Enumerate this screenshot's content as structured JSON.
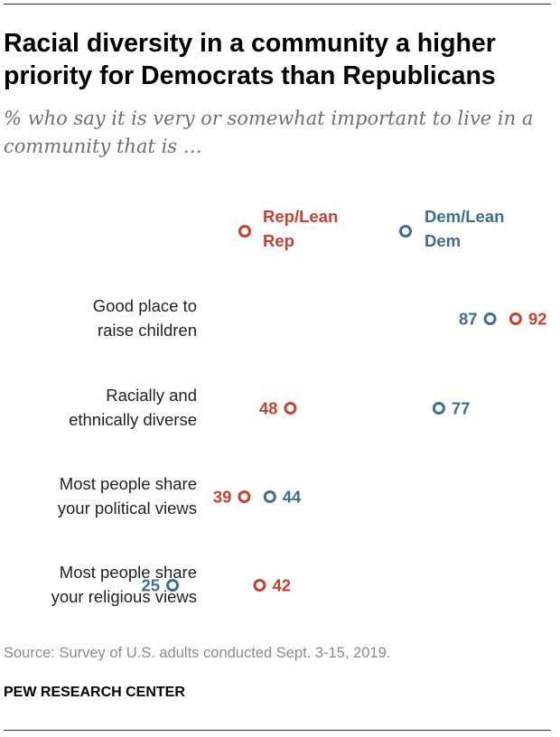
{
  "title": "Racial diversity in a community a higher priority for Democrats than Republicans",
  "subtitle": "% who say it is very or somewhat important to live in a community that is …",
  "source": "Source: Survey of U.S. adults conducted Sept. 3-15, 2019.",
  "organization": "PEW RESEARCH CENTER",
  "colors": {
    "rep": "#c8402f",
    "dem": "#3e6e8e",
    "label": "#222222"
  },
  "chart_data": {
    "type": "dot",
    "title": "Racial diversity in a community a higher priority for Democrats than Republicans",
    "legend_placement": "top",
    "xlim": [
      0,
      100
    ],
    "grid": false,
    "categories": [
      [
        "Good place to",
        "raise children"
      ],
      [
        "Racially and",
        "ethnically diverse"
      ],
      [
        "Most people share",
        "your political views"
      ],
      [
        "Most people share",
        "your religious views"
      ]
    ],
    "series": [
      {
        "name": [
          "Rep/Lean",
          "Rep"
        ],
        "key": "rep",
        "values": [
          92,
          48,
          39,
          42
        ]
      },
      {
        "name": [
          "Dem/Lean",
          "Dem"
        ],
        "key": "dem",
        "values": [
          87,
          77,
          44,
          25
        ]
      }
    ]
  }
}
